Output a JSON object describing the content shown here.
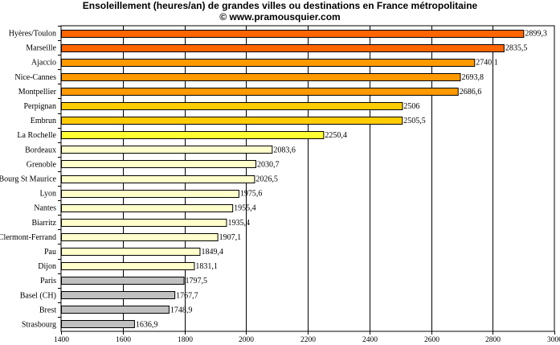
{
  "chart_data": {
    "type": "bar",
    "orientation": "horizontal",
    "title": "Ensoleillement (heures/an) de grandes villes ou destinations en France métropolitaine",
    "subtitle": "© www.pramousquier.com",
    "categories": [
      "Hyères/Toulon",
      "Marseille",
      "Ajaccio",
      "Nice-Cannes",
      "Montpellier",
      "Perpignan",
      "Embrun",
      "La Rochelle",
      "Bordeaux",
      "Grenoble",
      "Bourg St Maurice",
      "Lyon",
      "Nantes",
      "Biarritz",
      "Clermont-Ferrand",
      "Pau",
      "Dijon",
      "Paris",
      "Basel (CH)",
      "Brest",
      "Strasbourg"
    ],
    "values": [
      2899.3,
      2835.5,
      2740.1,
      2693.8,
      2686.6,
      2506,
      2505.5,
      2250.4,
      2083.6,
      2030.7,
      2026.5,
      1975.6,
      1955.4,
      1935.4,
      1907.1,
      1849.4,
      1831.1,
      1797.5,
      1767.7,
      1748.9,
      1636.9
    ],
    "value_labels": [
      "2899,3",
      "2835,5",
      "2740,1",
      "2693,8",
      "2686,6",
      "2506",
      "2505,5",
      "2250,4",
      "2083,6",
      "2030,7",
      "2026,5",
      "1975,6",
      "1955,4",
      "1935,4",
      "1907,1",
      "1849,4",
      "1831,1",
      "1797,5",
      "1767,7",
      "1748,9",
      "1636,9"
    ],
    "bar_colors": [
      "#ff6600",
      "#ff6600",
      "#ff9900",
      "#ff9900",
      "#ff9900",
      "#ffcc00",
      "#ffcc00",
      "#ffff33",
      "#ffffcc",
      "#ffffcc",
      "#ffffcc",
      "#ffffcc",
      "#ffffcc",
      "#ffffcc",
      "#ffffcc",
      "#ffffcc",
      "#ffffcc",
      "#c0c0c0",
      "#c0c0c0",
      "#c0c0c0",
      "#c0c0c0"
    ],
    "xlim": [
      1400,
      3000
    ],
    "xticks": [
      1400,
      1600,
      1800,
      2000,
      2200,
      2400,
      2600,
      2800,
      3000
    ],
    "grid": "vertical",
    "legend": "none"
  }
}
